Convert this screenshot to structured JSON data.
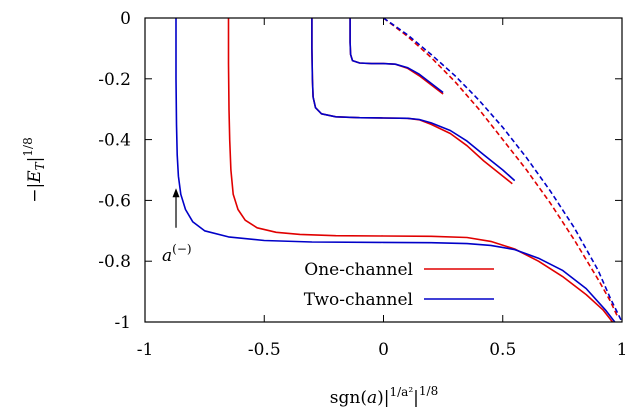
{
  "chart_data": {
    "type": "line",
    "xlim": [
      -1,
      1
    ],
    "ylim": [
      -1,
      0
    ],
    "xticks": [
      "-1",
      "-0.5",
      "0",
      "0.5",
      "1"
    ],
    "yticks": [
      "0",
      "-0.2",
      "-0.4",
      "-0.6",
      "-0.8",
      "-1"
    ],
    "xlabel": "sgn(a)|1/a²|^1/8",
    "ylabel": "−|E_T|^1/8",
    "legend": {
      "placement": "bottom-center",
      "entries": [
        {
          "label": "One-channel",
          "color": "#e00000"
        },
        {
          "label": "Two-channel",
          "color": "#0000c8"
        }
      ]
    },
    "annotation": {
      "text": "a^(−)",
      "x": -0.87,
      "y": -0.71,
      "arrow_to": [
        -0.87,
        -0.7
      ]
    },
    "series": [
      {
        "name": "One-channel",
        "color": "#e00000",
        "curves": [
          {
            "style": "solid",
            "points": [
              [
                -0.65,
                0.0
              ],
              [
                -0.65,
                -0.15
              ],
              [
                -0.648,
                -0.3
              ],
              [
                -0.645,
                -0.4
              ],
              [
                -0.64,
                -0.5
              ],
              [
                -0.63,
                -0.58
              ],
              [
                -0.61,
                -0.63
              ],
              [
                -0.58,
                -0.665
              ],
              [
                -0.53,
                -0.69
              ],
              [
                -0.45,
                -0.705
              ],
              [
                -0.35,
                -0.712
              ],
              [
                -0.2,
                -0.716
              ],
              [
                0.0,
                -0.717
              ],
              [
                0.2,
                -0.718
              ],
              [
                0.35,
                -0.722
              ],
              [
                0.45,
                -0.735
              ],
              [
                0.55,
                -0.76
              ],
              [
                0.65,
                -0.8
              ],
              [
                0.75,
                -0.85
              ],
              [
                0.85,
                -0.91
              ],
              [
                0.92,
                -0.96
              ],
              [
                0.96,
                -1.0
              ]
            ]
          },
          {
            "style": "solid",
            "points": [
              [
                -0.3,
                0.0
              ],
              [
                -0.3,
                -0.1
              ],
              [
                -0.298,
                -0.2
              ],
              [
                -0.295,
                -0.26
              ],
              [
                -0.285,
                -0.295
              ],
              [
                -0.26,
                -0.315
              ],
              [
                -0.2,
                -0.325
              ],
              [
                -0.1,
                -0.328
              ],
              [
                0.0,
                -0.329
              ],
              [
                0.1,
                -0.33
              ],
              [
                0.15,
                -0.335
              ],
              [
                0.2,
                -0.35
              ],
              [
                0.28,
                -0.38
              ],
              [
                0.35,
                -0.42
              ],
              [
                0.42,
                -0.47
              ],
              [
                0.5,
                -0.52
              ],
              [
                0.54,
                -0.545
              ]
            ]
          },
          {
            "style": "solid",
            "points": [
              [
                -0.14,
                0.0
              ],
              [
                -0.14,
                -0.08
              ],
              [
                -0.138,
                -0.12
              ],
              [
                -0.13,
                -0.14
              ],
              [
                -0.1,
                -0.148
              ],
              [
                -0.05,
                -0.15
              ],
              [
                0.0,
                -0.15
              ],
              [
                0.05,
                -0.152
              ],
              [
                0.1,
                -0.165
              ],
              [
                0.15,
                -0.19
              ],
              [
                0.2,
                -0.22
              ],
              [
                0.25,
                -0.25
              ]
            ]
          },
          {
            "style": "dashed",
            "points": [
              [
                0.0,
                0.0
              ],
              [
                0.1,
                -0.06
              ],
              [
                0.2,
                -0.13
              ],
              [
                0.3,
                -0.21
              ],
              [
                0.4,
                -0.3
              ],
              [
                0.5,
                -0.4
              ],
              [
                0.6,
                -0.5
              ],
              [
                0.7,
                -0.61
              ],
              [
                0.8,
                -0.73
              ],
              [
                0.9,
                -0.86
              ],
              [
                0.95,
                -0.93
              ],
              [
                0.98,
                -0.98
              ]
            ]
          }
        ]
      },
      {
        "name": "Two-channel",
        "color": "#0000c8",
        "curves": [
          {
            "style": "solid",
            "points": [
              [
                -0.87,
                0.0
              ],
              [
                -0.87,
                -0.2
              ],
              [
                -0.868,
                -0.35
              ],
              [
                -0.865,
                -0.45
              ],
              [
                -0.86,
                -0.52
              ],
              [
                -0.85,
                -0.58
              ],
              [
                -0.83,
                -0.63
              ],
              [
                -0.8,
                -0.67
              ],
              [
                -0.75,
                -0.7
              ],
              [
                -0.65,
                -0.72
              ],
              [
                -0.5,
                -0.732
              ],
              [
                -0.3,
                -0.737
              ],
              [
                0.0,
                -0.738
              ],
              [
                0.2,
                -0.739
              ],
              [
                0.35,
                -0.742
              ],
              [
                0.45,
                -0.748
              ],
              [
                0.55,
                -0.762
              ],
              [
                0.65,
                -0.79
              ],
              [
                0.75,
                -0.83
              ],
              [
                0.85,
                -0.89
              ],
              [
                0.93,
                -0.96
              ],
              [
                0.97,
                -1.0
              ]
            ]
          },
          {
            "style": "solid",
            "points": [
              [
                -0.3,
                0.0
              ],
              [
                -0.3,
                -0.1
              ],
              [
                -0.298,
                -0.2
              ],
              [
                -0.295,
                -0.26
              ],
              [
                -0.285,
                -0.295
              ],
              [
                -0.26,
                -0.315
              ],
              [
                -0.2,
                -0.325
              ],
              [
                -0.1,
                -0.328
              ],
              [
                0.0,
                -0.329
              ],
              [
                0.1,
                -0.33
              ],
              [
                0.15,
                -0.334
              ],
              [
                0.2,
                -0.345
              ],
              [
                0.28,
                -0.37
              ],
              [
                0.35,
                -0.405
              ],
              [
                0.42,
                -0.45
              ],
              [
                0.5,
                -0.5
              ],
              [
                0.55,
                -0.535
              ]
            ]
          },
          {
            "style": "solid",
            "points": [
              [
                -0.14,
                0.0
              ],
              [
                -0.14,
                -0.08
              ],
              [
                -0.138,
                -0.12
              ],
              [
                -0.13,
                -0.14
              ],
              [
                -0.1,
                -0.148
              ],
              [
                -0.05,
                -0.15
              ],
              [
                0.0,
                -0.15
              ],
              [
                0.05,
                -0.152
              ],
              [
                0.1,
                -0.163
              ],
              [
                0.15,
                -0.185
              ],
              [
                0.2,
                -0.215
              ],
              [
                0.25,
                -0.245
              ]
            ]
          },
          {
            "style": "dashed",
            "points": [
              [
                0.0,
                0.0
              ],
              [
                0.1,
                -0.055
              ],
              [
                0.2,
                -0.12
              ],
              [
                0.3,
                -0.19
              ],
              [
                0.4,
                -0.27
              ],
              [
                0.5,
                -0.36
              ],
              [
                0.6,
                -0.46
              ],
              [
                0.7,
                -0.57
              ],
              [
                0.8,
                -0.69
              ],
              [
                0.9,
                -0.83
              ],
              [
                0.95,
                -0.92
              ],
              [
                1.0,
                -1.0
              ]
            ]
          }
        ]
      }
    ]
  }
}
